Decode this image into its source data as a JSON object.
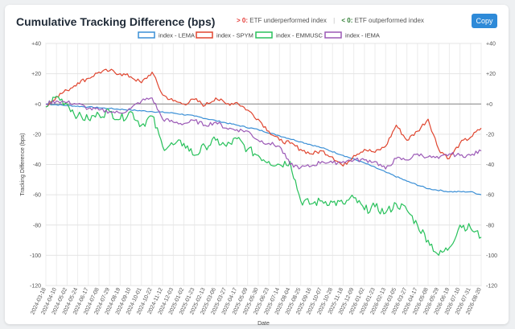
{
  "header": {
    "title": "Cumulative Tracking Difference (bps)",
    "annot_pos_sign": "> 0:",
    "annot_pos_text": "ETF underperformed index",
    "annot_neg_sign": "< 0:",
    "annot_neg_text": "ETF outperformed index",
    "copy_label": "Copy"
  },
  "colors": {
    "positive": "#e53935",
    "negative": "#2e7d32",
    "button": "#2e8ad8"
  },
  "chart_data": {
    "type": "line",
    "title": "Cumulative Tracking Difference (bps)",
    "xlabel": "Date",
    "ylabel": "Tracking Difference (bps)",
    "ylim": [
      -120,
      40
    ],
    "yticks": [
      -120,
      -100,
      -80,
      -60,
      -40,
      -20,
      0,
      20,
      40
    ],
    "ytick_labels": [
      "-120",
      "-100",
      "-80",
      "-60",
      "-40",
      "-20",
      "+0",
      "+20",
      "+40"
    ],
    "grid": true,
    "legend_position": "top",
    "zero_line": true,
    "x_tick_labels": [
      "2024-03-18",
      "2024-04-10",
      "2024-05-02",
      "2024-05-24",
      "2024-06-17",
      "2024-07-08",
      "2024-07-29",
      "2024-08-19",
      "2024-09-10",
      "2024-10-01",
      "2024-10-22",
      "2024-11-12",
      "2024-12-03",
      "2025-01-02",
      "2025-01-23",
      "2025-02-13",
      "2025-03-06",
      "2025-03-27",
      "2025-04-17",
      "2025-05-09",
      "2025-05-30",
      "2025-06-23",
      "2025-07-14",
      "2025-08-04",
      "2025-08-25",
      "2025-09-16",
      "2025-10-07",
      "2025-10-28",
      "2025-11-18",
      "2025-12-09",
      "2026-01-02",
      "2026-01-23",
      "2026-02-13",
      "2026-03-05",
      "2026-03-27",
      "2026-04-17",
      "2026-05-08",
      "2026-05-29",
      "2026-06-19",
      "2026-07-10",
      "2026-07-31",
      "2026-08-20"
    ],
    "x_tick_labels_shown": [
      "2024-03-18",
      "2024-04-10",
      "2024-05-02",
      "2024-05-24",
      "2024-06-17",
      "2024-07-08",
      "2024-07-29",
      "2024-08-19",
      "2024-09-10",
      "2024-10-01",
      "2024-10-22",
      "2024-11-12",
      "2024-12-03",
      "2025-01-02",
      "2025-01-23",
      "2025-02-13",
      "2025-03-06",
      "2025-03-27",
      "2025-04-17",
      "2025-05-09",
      "2025-05-30",
      "2025-06-23",
      "2025-07-14",
      "2025-08-04",
      "2025-08-25",
      "2025-09-16",
      "2025-10-07",
      "2025-10-28",
      "2025-11-18",
      "2025-12-09",
      "2026-01-02",
      "2026-01-23",
      "2026-02-13",
      "2026-03-05",
      "2026-03-27",
      "2026-04-17",
      "2026-05-08",
      "2026-05-29",
      "2026-06-19",
      "2026-07-10",
      "2026-07-31",
      "2026-08-20"
    ],
    "series": [
      {
        "name": "index - LEMA",
        "color": "#3a8fd6",
        "x_index": [
          0,
          2,
          4,
          6,
          8,
          10,
          12,
          14,
          16,
          18,
          20,
          22,
          24,
          26,
          28,
          30,
          32,
          34,
          36,
          38,
          40,
          41
        ],
        "values": [
          0,
          -1,
          -2,
          -3,
          -4,
          -5,
          -6,
          -8,
          -11,
          -14,
          -17,
          -21,
          -25,
          -29,
          -34,
          -39,
          -45,
          -51,
          -56,
          -58,
          -58,
          -60
        ]
      },
      {
        "name": "index - SPYM",
        "color": "#e0452f",
        "x_index": [
          0,
          1,
          2,
          3,
          4,
          5,
          6,
          7,
          8,
          9,
          10,
          11,
          12,
          13,
          14,
          15,
          16,
          17,
          18,
          19,
          20,
          21,
          22,
          23,
          24,
          25,
          26,
          27,
          28,
          29,
          30,
          31,
          32,
          33,
          34,
          35,
          36,
          37,
          38,
          39,
          40,
          41
        ],
        "values": [
          -2,
          5,
          9,
          14,
          17,
          21,
          22,
          20,
          18,
          14,
          21,
          6,
          2,
          0,
          3,
          -1,
          4,
          0,
          1,
          -4,
          -10,
          -18,
          -24,
          -26,
          -30,
          -33,
          -31,
          -35,
          -41,
          -34,
          -30,
          -32,
          -28,
          -14,
          -24,
          -18,
          -10,
          -30,
          -36,
          -26,
          -22,
          -16
        ]
      },
      {
        "name": "index - EMMUSC",
        "color": "#28c15b",
        "x_index": [
          0,
          1,
          2,
          3,
          4,
          5,
          6,
          7,
          8,
          9,
          10,
          11,
          12,
          13,
          14,
          15,
          16,
          17,
          18,
          19,
          20,
          21,
          22,
          23,
          24,
          25,
          26,
          27,
          28,
          29,
          30,
          31,
          32,
          33,
          34,
          35,
          36,
          37,
          38,
          39,
          40,
          41
        ],
        "values": [
          -2,
          5,
          0,
          -8,
          -10,
          -7,
          -5,
          -10,
          -5,
          -14,
          -8,
          -28,
          -27,
          -26,
          -34,
          -28,
          -24,
          -28,
          -23,
          -30,
          -34,
          -38,
          -40,
          -38,
          -64,
          -66,
          -64,
          -65,
          -66,
          -62,
          -70,
          -68,
          -72,
          -66,
          -70,
          -80,
          -90,
          -100,
          -95,
          -80,
          -82,
          -88
        ]
      },
      {
        "name": "index - IEMA",
        "color": "#9b59b6",
        "x_index": [
          0,
          1,
          2,
          3,
          4,
          5,
          6,
          7,
          8,
          9,
          10,
          11,
          12,
          13,
          14,
          15,
          16,
          17,
          18,
          19,
          20,
          21,
          22,
          23,
          24,
          25,
          26,
          27,
          28,
          29,
          30,
          31,
          32,
          33,
          34,
          35,
          36,
          37,
          38,
          39,
          40,
          41
        ],
        "values": [
          0,
          2,
          1,
          0,
          -3,
          -4,
          -5,
          -6,
          -3,
          2,
          4,
          -10,
          -12,
          -13,
          -11,
          -14,
          -12,
          -16,
          -17,
          -18,
          -24,
          -26,
          -28,
          -40,
          -42,
          -41,
          -38,
          -39,
          -38,
          -37,
          -37,
          -38,
          -43,
          -36,
          -37,
          -33,
          -35,
          -36,
          -33,
          -34,
          -34,
          -31
        ]
      }
    ]
  }
}
